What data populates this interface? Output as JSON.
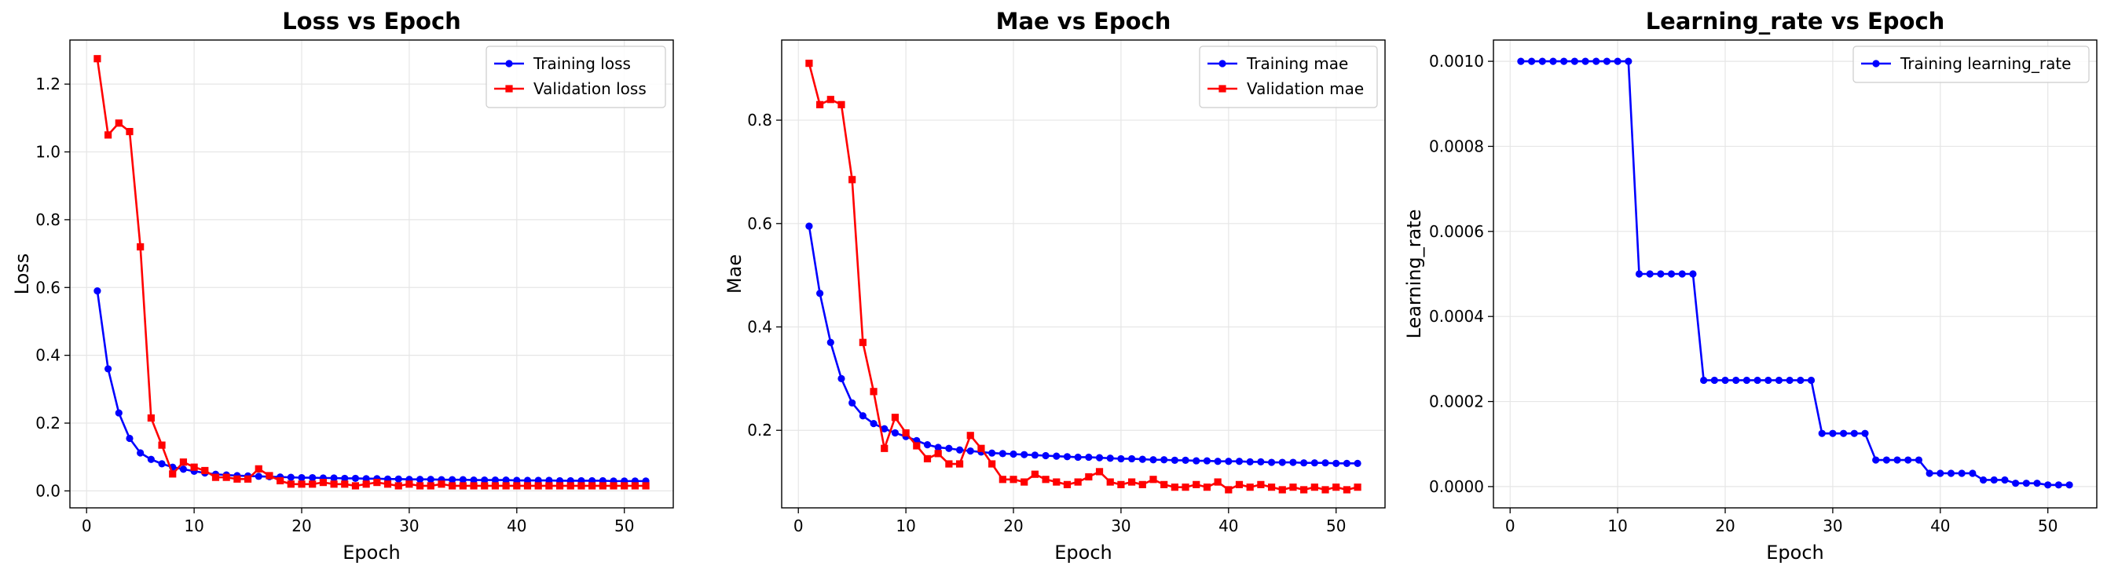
{
  "colors": {
    "training": "#0000ff",
    "validation": "#ff0000"
  },
  "chart_data": [
    {
      "type": "line",
      "title": "Loss vs Epoch",
      "xlabel": "Epoch",
      "ylabel": "Loss",
      "xlim": [
        -1.55,
        54.55
      ],
      "ylim": [
        -0.05,
        1.33
      ],
      "xticks": [
        0,
        10,
        20,
        30,
        40,
        50
      ],
      "xtick_labels": [
        "0",
        "10",
        "20",
        "30",
        "40",
        "50"
      ],
      "yticks": [
        0,
        0.2,
        0.4,
        0.6,
        0.8,
        1.0,
        1.2
      ],
      "ytick_labels": [
        "0.0",
        "0.2",
        "0.4",
        "0.6",
        "0.8",
        "1.0",
        "1.2"
      ],
      "grid": true,
      "legend_position": "top-right",
      "series": [
        {
          "name": "Training loss",
          "color": "#0000ff",
          "marker": "circle",
          "x": [
            1,
            2,
            3,
            4,
            5,
            6,
            7,
            8,
            9,
            10,
            11,
            12,
            13,
            14,
            15,
            16,
            17,
            18,
            19,
            20,
            21,
            22,
            23,
            24,
            25,
            26,
            27,
            28,
            29,
            30,
            31,
            32,
            33,
            34,
            35,
            36,
            37,
            38,
            39,
            40,
            41,
            42,
            43,
            44,
            45,
            46,
            47,
            48,
            49,
            50,
            51,
            52
          ],
          "values": [
            0.59,
            0.36,
            0.23,
            0.155,
            0.112,
            0.093,
            0.08,
            0.07,
            0.064,
            0.058,
            0.053,
            0.049,
            0.047,
            0.045,
            0.044,
            0.043,
            0.042,
            0.041,
            0.04,
            0.039,
            0.039,
            0.038,
            0.038,
            0.037,
            0.037,
            0.036,
            0.036,
            0.035,
            0.035,
            0.034,
            0.034,
            0.034,
            0.033,
            0.033,
            0.033,
            0.032,
            0.032,
            0.032,
            0.032,
            0.031,
            0.031,
            0.031,
            0.031,
            0.03,
            0.03,
            0.03,
            0.03,
            0.03,
            0.029,
            0.029,
            0.029,
            0.029
          ]
        },
        {
          "name": "Validation loss",
          "color": "#ff0000",
          "marker": "square",
          "x": [
            1,
            2,
            3,
            4,
            5,
            6,
            7,
            8,
            9,
            10,
            11,
            12,
            13,
            14,
            15,
            16,
            17,
            18,
            19,
            20,
            21,
            22,
            23,
            24,
            25,
            26,
            27,
            28,
            29,
            30,
            31,
            32,
            33,
            34,
            35,
            36,
            37,
            38,
            39,
            40,
            41,
            42,
            43,
            44,
            45,
            46,
            47,
            48,
            49,
            50,
            51,
            52
          ],
          "values": [
            1.275,
            1.05,
            1.085,
            1.06,
            0.72,
            0.215,
            0.135,
            0.05,
            0.085,
            0.07,
            0.06,
            0.04,
            0.04,
            0.035,
            0.035,
            0.065,
            0.045,
            0.03,
            0.02,
            0.02,
            0.02,
            0.025,
            0.02,
            0.02,
            0.015,
            0.02,
            0.025,
            0.02,
            0.015,
            0.02,
            0.015,
            0.015,
            0.02,
            0.015,
            0.015,
            0.015,
            0.015,
            0.015,
            0.015,
            0.015,
            0.015,
            0.015,
            0.015,
            0.015,
            0.015,
            0.015,
            0.015,
            0.015,
            0.015,
            0.015,
            0.015,
            0.015
          ]
        }
      ]
    },
    {
      "type": "line",
      "title": "Mae vs Epoch",
      "xlabel": "Epoch",
      "ylabel": "Mae",
      "xlim": [
        -1.55,
        54.55
      ],
      "ylim": [
        0.05,
        0.955
      ],
      "xticks": [
        0,
        10,
        20,
        30,
        40,
        50
      ],
      "xtick_labels": [
        "0",
        "10",
        "20",
        "30",
        "40",
        "50"
      ],
      "yticks": [
        0.2,
        0.4,
        0.6,
        0.8
      ],
      "ytick_labels": [
        "0.2",
        "0.4",
        "0.6",
        "0.8"
      ],
      "grid": true,
      "legend_position": "top-right",
      "series": [
        {
          "name": "Training mae",
          "color": "#0000ff",
          "marker": "circle",
          "x": [
            1,
            2,
            3,
            4,
            5,
            6,
            7,
            8,
            9,
            10,
            11,
            12,
            13,
            14,
            15,
            16,
            17,
            18,
            19,
            20,
            21,
            22,
            23,
            24,
            25,
            26,
            27,
            28,
            29,
            30,
            31,
            32,
            33,
            34,
            35,
            36,
            37,
            38,
            39,
            40,
            41,
            42,
            43,
            44,
            45,
            46,
            47,
            48,
            49,
            50,
            51,
            52
          ],
          "values": [
            0.595,
            0.465,
            0.37,
            0.3,
            0.253,
            0.228,
            0.213,
            0.203,
            0.195,
            0.188,
            0.18,
            0.172,
            0.167,
            0.165,
            0.162,
            0.16,
            0.158,
            0.156,
            0.155,
            0.154,
            0.153,
            0.152,
            0.151,
            0.15,
            0.149,
            0.148,
            0.148,
            0.147,
            0.146,
            0.145,
            0.145,
            0.144,
            0.143,
            0.143,
            0.142,
            0.142,
            0.141,
            0.141,
            0.14,
            0.14,
            0.14,
            0.139,
            0.139,
            0.138,
            0.138,
            0.138,
            0.137,
            0.137,
            0.137,
            0.136,
            0.136,
            0.136
          ]
        },
        {
          "name": "Validation mae",
          "color": "#ff0000",
          "marker": "square",
          "x": [
            1,
            2,
            3,
            4,
            5,
            6,
            7,
            8,
            9,
            10,
            11,
            12,
            13,
            14,
            15,
            16,
            17,
            18,
            19,
            20,
            21,
            22,
            23,
            24,
            25,
            26,
            27,
            28,
            29,
            30,
            31,
            32,
            33,
            34,
            35,
            36,
            37,
            38,
            39,
            40,
            41,
            42,
            43,
            44,
            45,
            46,
            47,
            48,
            49,
            50,
            51,
            52
          ],
          "values": [
            0.91,
            0.83,
            0.84,
            0.83,
            0.685,
            0.37,
            0.275,
            0.165,
            0.225,
            0.195,
            0.17,
            0.145,
            0.155,
            0.135,
            0.135,
            0.19,
            0.165,
            0.135,
            0.105,
            0.105,
            0.1,
            0.115,
            0.105,
            0.1,
            0.095,
            0.1,
            0.11,
            0.12,
            0.1,
            0.095,
            0.1,
            0.095,
            0.105,
            0.095,
            0.09,
            0.09,
            0.095,
            0.09,
            0.1,
            0.085,
            0.095,
            0.09,
            0.095,
            0.09,
            0.085,
            0.09,
            0.085,
            0.09,
            0.085,
            0.09,
            0.085,
            0.09
          ]
        }
      ]
    },
    {
      "type": "line",
      "title": "Learning_rate vs Epoch",
      "xlabel": "Epoch",
      "ylabel": "Learning_rate",
      "xlim": [
        -1.55,
        54.55
      ],
      "ylim": [
        -5e-05,
        0.00105
      ],
      "xticks": [
        0,
        10,
        20,
        30,
        40,
        50
      ],
      "xtick_labels": [
        "0",
        "10",
        "20",
        "30",
        "40",
        "50"
      ],
      "yticks": [
        0,
        0.0002,
        0.0004,
        0.0006,
        0.0008,
        0.001
      ],
      "ytick_labels": [
        "0.0000",
        "0.0002",
        "0.0004",
        "0.0006",
        "0.0008",
        "0.0010"
      ],
      "grid": true,
      "legend_position": "top-right",
      "series": [
        {
          "name": "Training learning_rate",
          "color": "#0000ff",
          "marker": "circle",
          "x": [
            1,
            2,
            3,
            4,
            5,
            6,
            7,
            8,
            9,
            10,
            11,
            12,
            13,
            14,
            15,
            16,
            17,
            18,
            19,
            20,
            21,
            22,
            23,
            24,
            25,
            26,
            27,
            28,
            29,
            30,
            31,
            32,
            33,
            34,
            35,
            36,
            37,
            38,
            39,
            40,
            41,
            42,
            43,
            44,
            45,
            46,
            47,
            48,
            49,
            50,
            51,
            52
          ],
          "values": [
            0.001,
            0.001,
            0.001,
            0.001,
            0.001,
            0.001,
            0.001,
            0.001,
            0.001,
            0.001,
            0.001,
            0.0005,
            0.0005,
            0.0005,
            0.0005,
            0.0005,
            0.0005,
            0.00025,
            0.00025,
            0.00025,
            0.00025,
            0.00025,
            0.00025,
            0.00025,
            0.00025,
            0.00025,
            0.00025,
            0.00025,
            0.000125,
            0.000125,
            0.000125,
            0.000125,
            0.000125,
            6.25e-05,
            6.25e-05,
            6.25e-05,
            6.25e-05,
            6.25e-05,
            3.125e-05,
            3.125e-05,
            3.125e-05,
            3.125e-05,
            3.125e-05,
            1.5625e-05,
            1.5625e-05,
            1.5625e-05,
            7.8125e-06,
            7.8125e-06,
            7.8125e-06,
            3.9063e-06,
            3.9063e-06,
            3.9063e-06
          ]
        }
      ]
    }
  ]
}
